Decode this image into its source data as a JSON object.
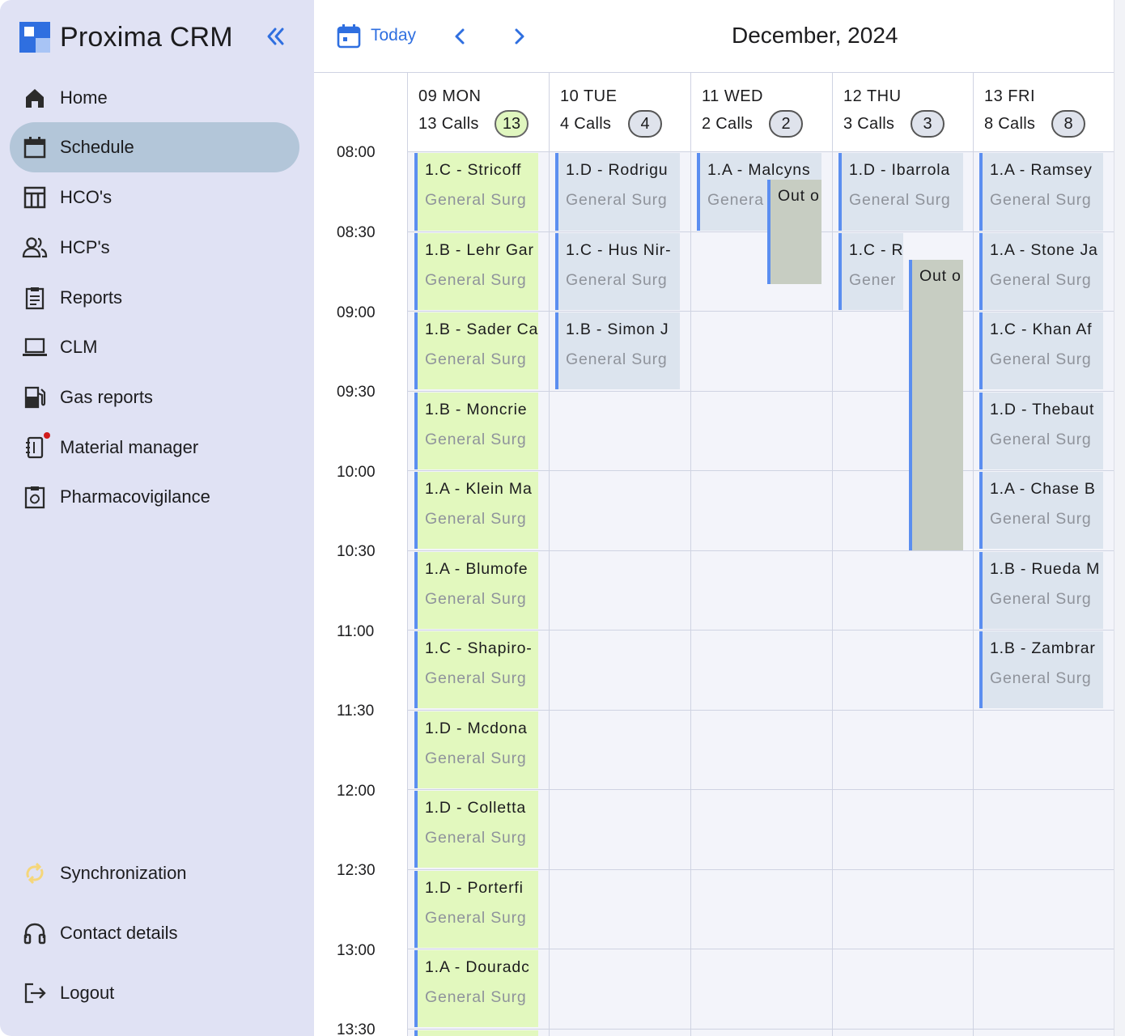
{
  "app": {
    "title": "Proxima CRM"
  },
  "sidebar": {
    "items": [
      {
        "label": "Home",
        "icon": "home-icon"
      },
      {
        "label": "Schedule",
        "icon": "calendar-icon",
        "active": true
      },
      {
        "label": "HCO's",
        "icon": "building-icon"
      },
      {
        "label": "HCP's",
        "icon": "users-icon"
      },
      {
        "label": "Reports",
        "icon": "clipboard-icon"
      },
      {
        "label": "CLM",
        "icon": "laptop-icon"
      },
      {
        "label": "Gas reports",
        "icon": "gas-pump-icon"
      },
      {
        "label": "Material manager",
        "icon": "notebook-icon",
        "notification_dot": true
      },
      {
        "label": "Pharmacovigilance",
        "icon": "medical-clipboard-icon"
      }
    ],
    "bottom": [
      {
        "label": "Synchronization",
        "icon": "sync-icon"
      },
      {
        "label": "Contact details",
        "icon": "headphones-icon"
      },
      {
        "label": "Logout",
        "icon": "logout-icon"
      }
    ]
  },
  "header": {
    "today_label": "Today",
    "month": "December, 2024"
  },
  "times": [
    "08:00",
    "08:30",
    "09:00",
    "09:30",
    "10:00",
    "10:30",
    "11:00",
    "11:30",
    "12:00",
    "12:30",
    "13:00",
    "13:30"
  ],
  "days": [
    {
      "name": "09 MON",
      "calls": "13 Calls",
      "badge": "13"
    },
    {
      "name": "10 TUE",
      "calls": "4 Calls",
      "badge": "4"
    },
    {
      "name": "11 WED",
      "calls": "2 Calls",
      "badge": "2"
    },
    {
      "name": "12 THU",
      "calls": "3 Calls",
      "badge": "3"
    },
    {
      "name": "13 FRI",
      "calls": "8 Calls",
      "badge": "8"
    }
  ],
  "events": {
    "mon": [
      {
        "title": "1.C - Stricoff",
        "sub": "General Surg"
      },
      {
        "title": "1.B - Lehr Gar",
        "sub": "General Surg"
      },
      {
        "title": "1.B - Sader Ca",
        "sub": "General Surg"
      },
      {
        "title": "1.B - Moncrie",
        "sub": "General Surg"
      },
      {
        "title": "1.A - Klein Ma",
        "sub": "General Surg"
      },
      {
        "title": "1.A - Blumofe",
        "sub": "General Surg"
      },
      {
        "title": "1.C - Shapiro-",
        "sub": "General Surg"
      },
      {
        "title": "1.D - Mcdona",
        "sub": "General Surg"
      },
      {
        "title": "1.D - Colletta",
        "sub": "General Surg"
      },
      {
        "title": "1.D - Porterfi",
        "sub": "General Surg"
      },
      {
        "title": "1.A - Douradc",
        "sub": "General Surg"
      }
    ],
    "tue": [
      {
        "title": "1.D - Rodrigu",
        "sub": "General Surg"
      },
      {
        "title": "1.C - Hus Nir-",
        "sub": "General Surg"
      },
      {
        "title": "1.B - Simon J",
        "sub": "General Surg"
      }
    ],
    "wed": [
      {
        "title": "1.A - Malcyns",
        "sub": "Genera"
      }
    ],
    "wed_ooo": "Out o",
    "thu": [
      {
        "title": "1.D - Ibarrola",
        "sub": "General Surg"
      },
      {
        "title": "1.C - R",
        "sub": "Gener"
      }
    ],
    "thu_ooo": "Out o",
    "fri": [
      {
        "title": "1.A - Ramsey",
        "sub": "General Surg"
      },
      {
        "title": "1.A - Stone Ja",
        "sub": "General Surg"
      },
      {
        "title": "1.C - Khan Af",
        "sub": "General Surg"
      },
      {
        "title": "1.D - Thebaut",
        "sub": "General Surg"
      },
      {
        "title": "1.A - Chase B",
        "sub": "General Surg"
      },
      {
        "title": "1.B - Rueda M",
        "sub": "General Surg"
      },
      {
        "title": "1.B - Zambrar",
        "sub": "General Surg"
      }
    ]
  },
  "colors": {
    "accent": "#2f6fe0",
    "sidebar_bg": "#e0e2f4",
    "active_item_bg": "#b3c6d9",
    "event_blue": "#dce4ee",
    "event_green": "#e2f8be",
    "out_of_office": "#c7cdc2"
  }
}
